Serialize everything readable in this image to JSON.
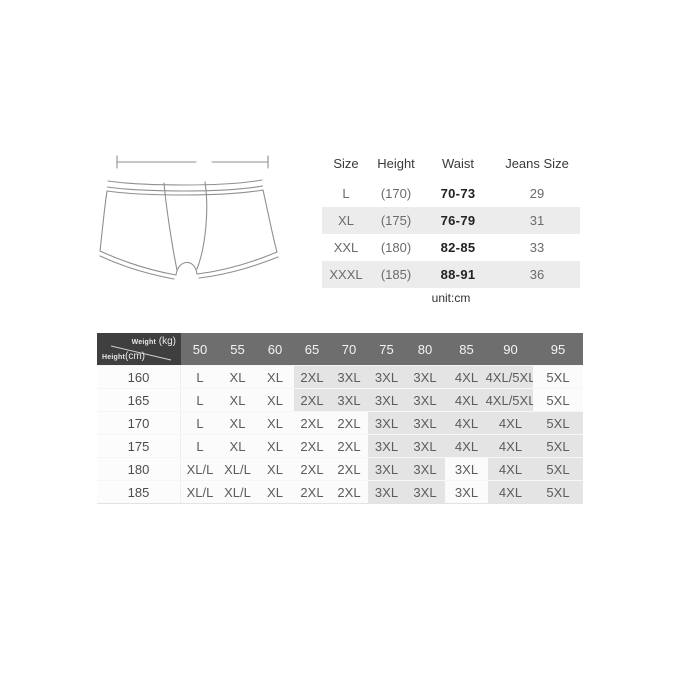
{
  "illustration": {
    "name": "boxer-briefs-line-drawing"
  },
  "unit_label": "unit:cm",
  "size_table": {
    "headers": [
      "Size",
      "Height",
      "Waist",
      "Jeans Size"
    ],
    "rows": [
      {
        "size": "L",
        "height": "(170)",
        "waist": "70-73",
        "jeans": "29"
      },
      {
        "size": "XL",
        "height": "(175)",
        "waist": "76-79",
        "jeans": "31"
      },
      {
        "size": "XXL",
        "height": "(180)",
        "waist": "82-85",
        "jeans": "33"
      },
      {
        "size": "XXXL",
        "height": "(185)",
        "waist": "88-91",
        "jeans": "36"
      }
    ]
  },
  "matrix_table": {
    "corner": {
      "weight_label": "Weight",
      "weight_unit": "(kg)",
      "height_label": "Height",
      "height_unit": "(cm)"
    },
    "weight_columns": [
      "50",
      "55",
      "60",
      "65",
      "70",
      "75",
      "80",
      "85",
      "90",
      "95"
    ],
    "rows": [
      {
        "height": "160",
        "sizes": [
          "L",
          "XL",
          "XL",
          "2XL",
          "3XL",
          "3XL",
          "3XL",
          "4XL",
          "4XL/5XL",
          "5XL"
        ],
        "shaded": [
          false,
          false,
          false,
          true,
          true,
          true,
          true,
          true,
          true,
          false
        ]
      },
      {
        "height": "165",
        "sizes": [
          "L",
          "XL",
          "XL",
          "2XL",
          "3XL",
          "3XL",
          "3XL",
          "4XL",
          "4XL/5XL",
          "5XL"
        ],
        "shaded": [
          false,
          false,
          false,
          true,
          true,
          true,
          true,
          true,
          true,
          false
        ]
      },
      {
        "height": "170",
        "sizes": [
          "L",
          "XL",
          "XL",
          "2XL",
          "2XL",
          "3XL",
          "3XL",
          "4XL",
          "4XL",
          "5XL"
        ],
        "shaded": [
          false,
          false,
          false,
          false,
          false,
          true,
          true,
          true,
          true,
          true
        ]
      },
      {
        "height": "175",
        "sizes": [
          "L",
          "XL",
          "XL",
          "2XL",
          "2XL",
          "3XL",
          "3XL",
          "4XL",
          "4XL",
          "5XL"
        ],
        "shaded": [
          false,
          false,
          false,
          false,
          false,
          true,
          true,
          true,
          true,
          true
        ]
      },
      {
        "height": "180",
        "sizes": [
          "XL/L",
          "XL/L",
          "XL",
          "2XL",
          "2XL",
          "3XL",
          "3XL",
          "3XL",
          "4XL",
          "5XL"
        ],
        "shaded": [
          false,
          false,
          false,
          false,
          false,
          true,
          true,
          false,
          true,
          true
        ]
      },
      {
        "height": "185",
        "sizes": [
          "XL/L",
          "XL/L",
          "XL",
          "2XL",
          "2XL",
          "3XL",
          "3XL",
          "3XL",
          "4XL",
          "5XL"
        ],
        "shaded": [
          false,
          false,
          false,
          false,
          false,
          true,
          true,
          false,
          true,
          true
        ]
      }
    ]
  },
  "colors": {
    "matrix_header_bg": "#6e6e6e",
    "matrix_corner_bg": "#3f3f3f",
    "matrix_shaded_cell": "#e4e4e4",
    "size_table_alt_row": "#ececec",
    "sketch_stroke": "#8f8f8f"
  }
}
